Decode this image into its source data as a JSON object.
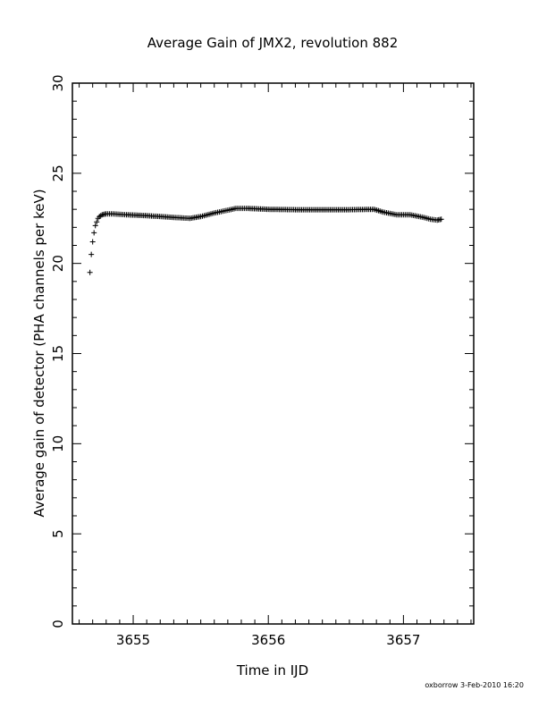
{
  "chart_data": {
    "type": "scatter",
    "title": "Average Gain of JMX2, revolution 882",
    "xlabel": "Time in IJD",
    "ylabel": "Average gain of detector (PHA channels per keV)",
    "xlim": [
      3654.55,
      3657.52
    ],
    "ylim": [
      0,
      30
    ],
    "x_ticks": [
      3655,
      3656,
      3657
    ],
    "y_ticks": [
      0,
      5,
      10,
      15,
      20,
      25,
      30
    ],
    "marker": "+",
    "grid": false,
    "legend": "none",
    "series": [
      {
        "x": [
          3654.68,
          3654.69,
          3654.7,
          3654.71,
          3654.72,
          3654.73,
          3654.74,
          3654.75,
          3654.77,
          3654.8,
          3654.85,
          3654.95,
          3655.1,
          3655.3,
          3655.42,
          3655.5,
          3655.6,
          3655.7,
          3655.76,
          3655.85,
          3656.0,
          3656.2,
          3656.4,
          3656.6,
          3656.78,
          3656.85,
          3656.95,
          3657.05,
          3657.15,
          3657.2,
          3657.25,
          3657.28
        ],
        "y": [
          19.5,
          20.5,
          21.2,
          21.7,
          22.1,
          22.3,
          22.5,
          22.6,
          22.7,
          22.75,
          22.75,
          22.7,
          22.65,
          22.55,
          22.5,
          22.6,
          22.8,
          22.95,
          23.05,
          23.05,
          23.0,
          22.98,
          22.98,
          22.98,
          23.0,
          22.85,
          22.7,
          22.7,
          22.55,
          22.45,
          22.4,
          22.45
        ]
      }
    ]
  },
  "footer": "oxborrow  3-Feb-2010 16:20"
}
